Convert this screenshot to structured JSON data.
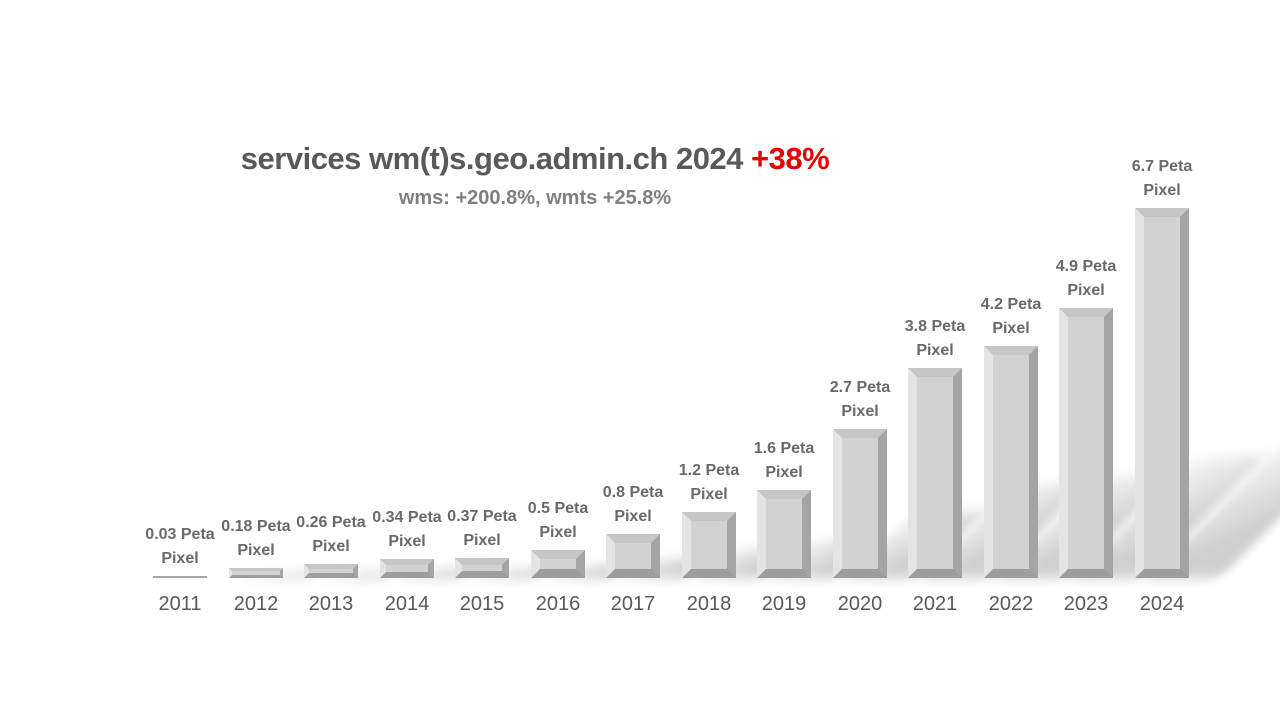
{
  "title": {
    "main": "services wm(t)s.geo.admin.ch 2024",
    "highlight": "+38%",
    "subtitle": "wms: +200.8%, wmts +25.8%"
  },
  "colors": {
    "background": "#ffffff",
    "title_text": "#595959",
    "highlight_text": "#e60000",
    "subtitle_text": "#7f7f7f",
    "data_label_text": "#696969",
    "axis_label_text": "#595959",
    "bar_face": "#d2d2d2",
    "bar_bevel_light": "#e4e4e4",
    "bar_bevel_dark": "#a4a4a4"
  },
  "chart_data": {
    "type": "bar",
    "title": "services wm(t)s.geo.admin.ch 2024 +38%",
    "subtitle": "wms: +200.8%, wmts +25.8%",
    "categories": [
      "2011",
      "2012",
      "2013",
      "2014",
      "2015",
      "2016",
      "2017",
      "2018",
      "2019",
      "2020",
      "2021",
      "2022",
      "2023",
      "2024"
    ],
    "values": [
      0.03,
      0.18,
      0.26,
      0.34,
      0.37,
      0.5,
      0.8,
      1.2,
      1.6,
      2.7,
      3.8,
      4.2,
      4.9,
      6.7
    ],
    "unit": "Peta Pixel",
    "data_labels": [
      [
        "0.03 Peta",
        "Pixel"
      ],
      [
        "0.18 Peta",
        "Pixel"
      ],
      [
        "0.26 Peta",
        "Pixel"
      ],
      [
        "0.34 Peta",
        "Pixel"
      ],
      [
        "0.37 Peta",
        "Pixel"
      ],
      [
        "0.5 Peta",
        "Pixel"
      ],
      [
        "0.8 Peta",
        "Pixel"
      ],
      [
        "1.2 Peta",
        "Pixel"
      ],
      [
        "1.6 Peta",
        "Pixel"
      ],
      [
        "2.7 Peta",
        "Pixel"
      ],
      [
        "3.8 Peta",
        "Pixel"
      ],
      [
        "4.2 Peta",
        "Pixel"
      ],
      [
        "4.9 Peta",
        "Pixel"
      ],
      [
        "6.7 Peta",
        "Pixel"
      ]
    ],
    "xlabel": "",
    "ylabel": "",
    "ylim": [
      0,
      7
    ],
    "grid": false,
    "legend": false,
    "bar_style": "3d-bevel-gray-with-perspective-shadow"
  }
}
